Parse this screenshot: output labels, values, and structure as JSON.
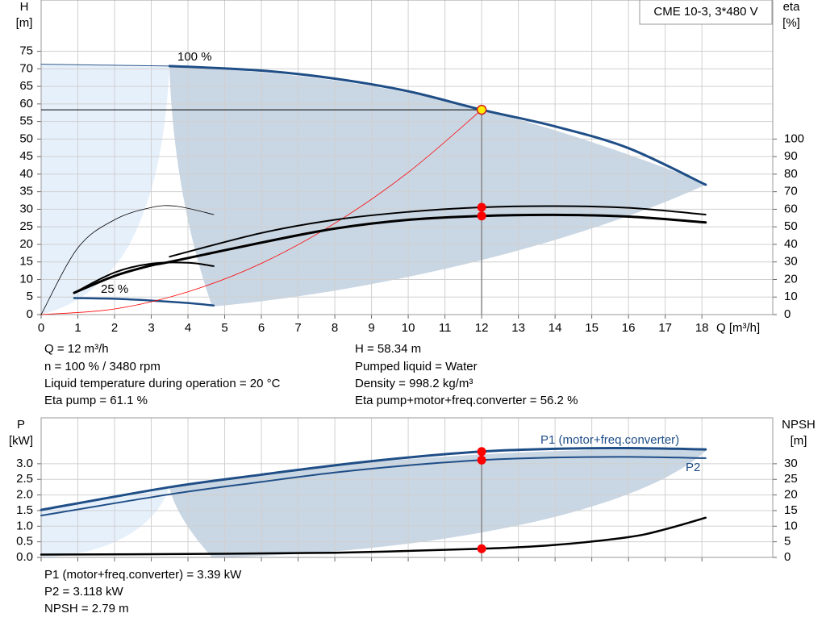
{
  "chart_data": [
    {
      "type": "line",
      "title": "CME 10-3, 3*480 V",
      "ylabel": "H",
      "yunit": "[m]",
      "y2label": "eta",
      "y2unit": "[%]",
      "xlabel": "Q [m³/h]",
      "xlim": [
        0,
        19.93
      ],
      "xticks": [
        0,
        1,
        2,
        3,
        4,
        5,
        6,
        7,
        8,
        9,
        10,
        11,
        12,
        13,
        14,
        15,
        16,
        17,
        18
      ],
      "ylim": [
        0,
        89.6
      ],
      "yticks": [
        0,
        5,
        10,
        15,
        20,
        25,
        30,
        35,
        40,
        45,
        50,
        55,
        60,
        65,
        70,
        75
      ],
      "y2lim": [
        0,
        179.2
      ],
      "y2ticks": [
        0,
        10,
        20,
        30,
        40,
        50,
        60,
        70,
        80,
        90,
        100
      ],
      "grid": true,
      "series": [
        {
          "color": "#1f4e87",
          "line_width": 1,
          "x": [
            0,
            3.5
          ],
          "values": [
            71.3,
            70.8
          ]
        },
        {
          "name": "100 %",
          "color": "#1f4e87",
          "line_width": 3,
          "x": [
            3.5,
            6,
            8,
            10,
            12,
            14,
            16,
            18.1
          ],
          "values": [
            70.8,
            69.5,
            67.2,
            63.6,
            58.34,
            53.6,
            47.4,
            37
          ]
        },
        {
          "name": "25 %",
          "color": "#1f4e87",
          "line_width": 2.5,
          "x": [
            0.9,
            2,
            3,
            4,
            4.7
          ],
          "values": [
            4.7,
            4.5,
            4,
            3.3,
            2.6
          ]
        },
        {
          "color": "#ff0000",
          "line_width": 0.8,
          "x": [
            0,
            2,
            4,
            6,
            8,
            10,
            12
          ],
          "values": [
            0,
            1.6,
            6.5,
            14.6,
            26,
            40.5,
            58.34
          ]
        },
        {
          "color": "#000000",
          "line_width": 0.8,
          "axis": "y2",
          "x": [
            0,
            1,
            2,
            3,
            3.7,
            4.7
          ],
          "values": [
            0,
            38,
            54,
            61,
            61.7,
            57
          ]
        },
        {
          "color": "#000000",
          "line_width": 2,
          "axis": "y2",
          "x": [
            0.9,
            2,
            3,
            4,
            4.7
          ],
          "values": [
            12.4,
            24,
            29,
            29.5,
            27.6
          ]
        },
        {
          "color": "#000000",
          "line_width": 2,
          "axis": "y2",
          "x": [
            3.5,
            6,
            8,
            10,
            12,
            14,
            16,
            18.1
          ],
          "values": [
            33,
            46.5,
            54,
            58.5,
            61.1,
            61.8,
            60.8,
            57
          ]
        },
        {
          "color": "#000000",
          "line_width": 3,
          "axis": "y2",
          "x": [
            0.9,
            2,
            3,
            3.5,
            6,
            8,
            10,
            12,
            14,
            16,
            18.1
          ],
          "values": [
            12.4,
            22,
            28,
            30,
            41,
            49,
            54,
            56.2,
            56.8,
            55.8,
            52.5
          ]
        }
      ],
      "points": [
        {
          "x": 12,
          "y": 58.34,
          "color": "#ffee00"
        },
        {
          "x": 12,
          "y": 61.1,
          "axis": "y2",
          "color": "#ff0000"
        },
        {
          "x": 12,
          "y": 56.2,
          "axis": "y2",
          "color": "#ff0000"
        }
      ],
      "notes": [
        "Q = 12 m³/h",
        "n = 100 % / 3480 rpm",
        "Liquid temperature during operation = 20 °C",
        "Eta pump = 61.1 %",
        "H = 58.34 m",
        "Pumped liquid = Water",
        "Density = 998.2 kg/m³",
        "Eta pump+motor+freq.converter = 56.2 %"
      ]
    },
    {
      "type": "line",
      "ylabel": "P",
      "yunit": "[kW]",
      "y2label": "NPSH",
      "y2unit": "[m]",
      "xlim": [
        0,
        19.93
      ],
      "xticks": [
        0,
        1,
        2,
        3,
        4,
        5,
        6,
        7,
        8,
        9,
        10,
        11,
        12,
        13,
        14,
        15,
        16,
        17,
        18
      ],
      "ylim": [
        0,
        4.47
      ],
      "yticks": [
        {
          "value": 0,
          "label": "0.0"
        },
        0.5,
        {
          "value": 1,
          "label": "1.0"
        },
        1.5,
        {
          "value": 2,
          "label": "2.0"
        },
        2.5,
        {
          "value": 3,
          "label": "3.0"
        }
      ],
      "y2lim": [
        0,
        44.7
      ],
      "y2ticks": [
        0,
        5,
        10,
        15,
        20,
        25,
        30
      ],
      "grid": true,
      "series": [
        {
          "name": "P1 (motor+freq.converter)",
          "color": "#1f4e87",
          "line_width": 3,
          "x": [
            0,
            3.5,
            6,
            8,
            10,
            12,
            14,
            16,
            18.1
          ],
          "values": [
            1.52,
            2.25,
            2.65,
            2.95,
            3.2,
            3.39,
            3.48,
            3.5,
            3.46
          ]
        },
        {
          "name": "P2",
          "color": "#1f4e87",
          "line_width": 2,
          "x": [
            0,
            3.5,
            6,
            8,
            10,
            12,
            14,
            16,
            18.1
          ],
          "values": [
            1.34,
            2.02,
            2.42,
            2.72,
            2.95,
            3.118,
            3.2,
            3.22,
            3.18
          ]
        },
        {
          "color": "#000000",
          "line_width": 2.5,
          "axis": "y2",
          "x": [
            0,
            4,
            8,
            12,
            14,
            16,
            17,
            18.1
          ],
          "values": [
            0.9,
            1.1,
            1.5,
            2.79,
            4,
            6.5,
            9,
            12.7
          ]
        }
      ],
      "points": [
        {
          "x": 12,
          "y": 3.39,
          "color": "#ff0000"
        },
        {
          "x": 12,
          "y": 3.118,
          "color": "#ff0000"
        },
        {
          "x": 12,
          "y": 2.79,
          "axis": "y2",
          "color": "#ff0000"
        }
      ],
      "notes": [
        "P1 (motor+freq.converter) = 3.39 kW",
        "P2 = 3.118 kW",
        "NPSH = 2.79 m"
      ]
    }
  ]
}
